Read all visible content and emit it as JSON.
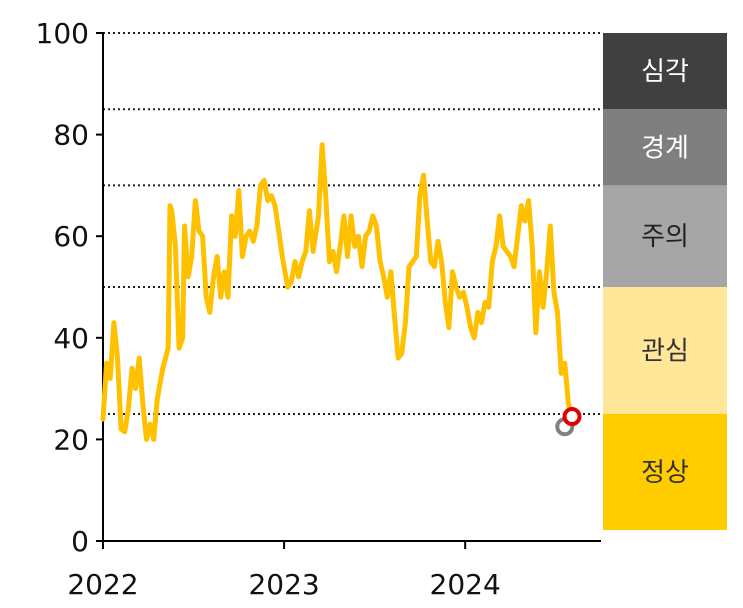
{
  "chart_data": {
    "type": "line",
    "ylim": [
      0,
      100
    ],
    "y_ticks": [
      0,
      20,
      40,
      60,
      80,
      100
    ],
    "x_ticks": [
      "2022",
      "2023",
      "2024"
    ],
    "xlim": [
      2022.0,
      2024.75
    ],
    "thresholds": [
      25,
      50,
      70,
      85,
      100
    ],
    "grid": "dotted lines at thresholds",
    "bands": [
      {
        "label": "정상",
        "range": [
          0,
          25
        ],
        "color": "#FFCC00",
        "text_color": "#333333"
      },
      {
        "label": "관심",
        "range": [
          25,
          50
        ],
        "color": "#FFE699",
        "text_color": "#333333"
      },
      {
        "label": "주의",
        "range": [
          50,
          70
        ],
        "color": "#A6A6A6",
        "text_color": "#222222"
      },
      {
        "label": "경계",
        "range": [
          70,
          85
        ],
        "color": "#7F7F7F",
        "text_color": "#ffffff"
      },
      {
        "label": "심각",
        "range": [
          85,
          100
        ],
        "color": "#404040",
        "text_color": "#ffffff"
      }
    ],
    "series": [
      {
        "color": "#FFC000",
        "points": [
          [
            2022.0,
            24
          ],
          [
            2022.02,
            35
          ],
          [
            2022.04,
            32
          ],
          [
            2022.06,
            43
          ],
          [
            2022.08,
            36
          ],
          [
            2022.1,
            22
          ],
          [
            2022.12,
            21.5
          ],
          [
            2022.14,
            26
          ],
          [
            2022.16,
            34
          ],
          [
            2022.18,
            30
          ],
          [
            2022.2,
            36
          ],
          [
            2022.22,
            27
          ],
          [
            2022.24,
            20
          ],
          [
            2022.26,
            23
          ],
          [
            2022.28,
            20
          ],
          [
            2022.3,
            28
          ],
          [
            2022.33,
            34
          ],
          [
            2022.36,
            38
          ],
          [
            2022.37,
            66
          ],
          [
            2022.38,
            65
          ],
          [
            2022.4,
            58
          ],
          [
            2022.42,
            38
          ],
          [
            2022.44,
            40
          ],
          [
            2022.45,
            62
          ],
          [
            2022.47,
            52
          ],
          [
            2022.49,
            56
          ],
          [
            2022.51,
            67
          ],
          [
            2022.53,
            61
          ],
          [
            2022.55,
            60
          ],
          [
            2022.57,
            48
          ],
          [
            2022.59,
            45
          ],
          [
            2022.61,
            52
          ],
          [
            2022.63,
            56
          ],
          [
            2022.65,
            48
          ],
          [
            2022.67,
            53
          ],
          [
            2022.69,
            48
          ],
          [
            2022.71,
            64
          ],
          [
            2022.73,
            60
          ],
          [
            2022.75,
            69
          ],
          [
            2022.77,
            56
          ],
          [
            2022.79,
            60
          ],
          [
            2022.81,
            61
          ],
          [
            2022.83,
            59
          ],
          [
            2022.85,
            62
          ],
          [
            2022.87,
            70
          ],
          [
            2022.89,
            71
          ],
          [
            2022.91,
            67
          ],
          [
            2022.93,
            68
          ],
          [
            2022.95,
            66
          ],
          [
            2022.97,
            61
          ],
          [
            2022.99,
            56
          ],
          [
            2023.02,
            50
          ],
          [
            2023.04,
            51
          ],
          [
            2023.06,
            55
          ],
          [
            2023.08,
            52
          ],
          [
            2023.1,
            55
          ],
          [
            2023.12,
            57
          ],
          [
            2023.14,
            65
          ],
          [
            2023.16,
            57
          ],
          [
            2023.19,
            64
          ],
          [
            2023.21,
            78
          ],
          [
            2023.23,
            68
          ],
          [
            2023.25,
            55
          ],
          [
            2023.27,
            57
          ],
          [
            2023.29,
            53
          ],
          [
            2023.31,
            58
          ],
          [
            2023.33,
            64
          ],
          [
            2023.35,
            56
          ],
          [
            2023.37,
            64
          ],
          [
            2023.39,
            58
          ],
          [
            2023.41,
            60
          ],
          [
            2023.43,
            54
          ],
          [
            2023.45,
            60
          ],
          [
            2023.47,
            61
          ],
          [
            2023.49,
            64
          ],
          [
            2023.51,
            62
          ],
          [
            2023.53,
            55
          ],
          [
            2023.55,
            52
          ],
          [
            2023.57,
            48
          ],
          [
            2023.59,
            53
          ],
          [
            2023.61,
            44
          ],
          [
            2023.63,
            36
          ],
          [
            2023.65,
            37
          ],
          [
            2023.67,
            43
          ],
          [
            2023.69,
            54
          ],
          [
            2023.71,
            55
          ],
          [
            2023.73,
            56
          ],
          [
            2023.75,
            68
          ],
          [
            2023.77,
            72
          ],
          [
            2023.79,
            63
          ],
          [
            2023.81,
            55
          ],
          [
            2023.83,
            54
          ],
          [
            2023.85,
            59
          ],
          [
            2023.87,
            55
          ],
          [
            2023.89,
            47
          ],
          [
            2023.91,
            42
          ],
          [
            2023.93,
            53
          ],
          [
            2023.95,
            50
          ],
          [
            2023.97,
            48
          ],
          [
            2023.99,
            49
          ],
          [
            2024.01,
            46
          ],
          [
            2024.03,
            42
          ],
          [
            2024.05,
            40
          ],
          [
            2024.07,
            45
          ],
          [
            2024.09,
            43
          ],
          [
            2024.11,
            47
          ],
          [
            2024.13,
            46
          ],
          [
            2024.15,
            55
          ],
          [
            2024.17,
            58
          ],
          [
            2024.19,
            64
          ],
          [
            2024.21,
            58
          ],
          [
            2024.23,
            57
          ],
          [
            2024.25,
            56
          ],
          [
            2024.27,
            54
          ],
          [
            2024.29,
            60
          ],
          [
            2024.31,
            66
          ],
          [
            2024.33,
            63
          ],
          [
            2024.35,
            67
          ],
          [
            2024.37,
            58
          ],
          [
            2024.39,
            41
          ],
          [
            2024.41,
            53
          ],
          [
            2024.43,
            46
          ],
          [
            2024.45,
            53
          ],
          [
            2024.47,
            62
          ],
          [
            2024.49,
            49
          ],
          [
            2024.51,
            45
          ],
          [
            2024.53,
            33
          ],
          [
            2024.55,
            35
          ],
          [
            2024.57,
            27
          ],
          [
            2024.59,
            24.5
          ]
        ]
      }
    ],
    "markers": [
      {
        "x": 2024.55,
        "y": 22.5,
        "fill": "#ffffff",
        "stroke": "#808080"
      },
      {
        "x": 2024.59,
        "y": 24.5,
        "fill": "#ffffff",
        "stroke": "#E00000"
      }
    ]
  }
}
